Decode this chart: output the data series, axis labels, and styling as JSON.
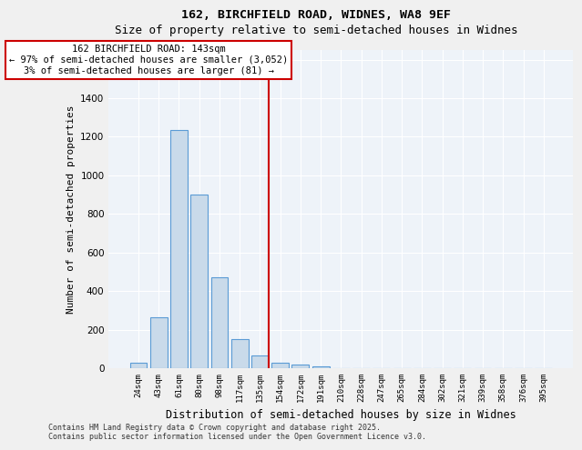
{
  "title1": "162, BIRCHFIELD ROAD, WIDNES, WA8 9EF",
  "title2": "Size of property relative to semi-detached houses in Widnes",
  "xlabel": "Distribution of semi-detached houses by size in Widnes",
  "ylabel": "Number of semi-detached properties",
  "categories": [
    "24sqm",
    "43sqm",
    "61sqm",
    "80sqm",
    "98sqm",
    "117sqm",
    "135sqm",
    "154sqm",
    "172sqm",
    "191sqm",
    "210sqm",
    "228sqm",
    "247sqm",
    "265sqm",
    "284sqm",
    "302sqm",
    "321sqm",
    "339sqm",
    "358sqm",
    "376sqm",
    "395sqm"
  ],
  "values": [
    28,
    265,
    1235,
    900,
    470,
    150,
    65,
    30,
    20,
    10,
    0,
    0,
    0,
    0,
    0,
    0,
    0,
    0,
    0,
    0,
    0
  ],
  "bar_color": "#c9daea",
  "bar_edge_color": "#5b9bd5",
  "vline_x": 7.5,
  "vline_color": "#cc0000",
  "annotation_text": "162 BIRCHFIELD ROAD: 143sqm\n← 97% of semi-detached houses are smaller (3,052)\n3% of semi-detached houses are larger (81) →",
  "annotation_box_color": "#cc0000",
  "ylim": [
    0,
    1650
  ],
  "yticks": [
    0,
    200,
    400,
    600,
    800,
    1000,
    1200,
    1400,
    1600
  ],
  "footer1": "Contains HM Land Registry data © Crown copyright and database right 2025.",
  "footer2": "Contains public sector information licensed under the Open Government Licence v3.0.",
  "bg_color": "#eef3f9",
  "grid_color": "#ffffff"
}
